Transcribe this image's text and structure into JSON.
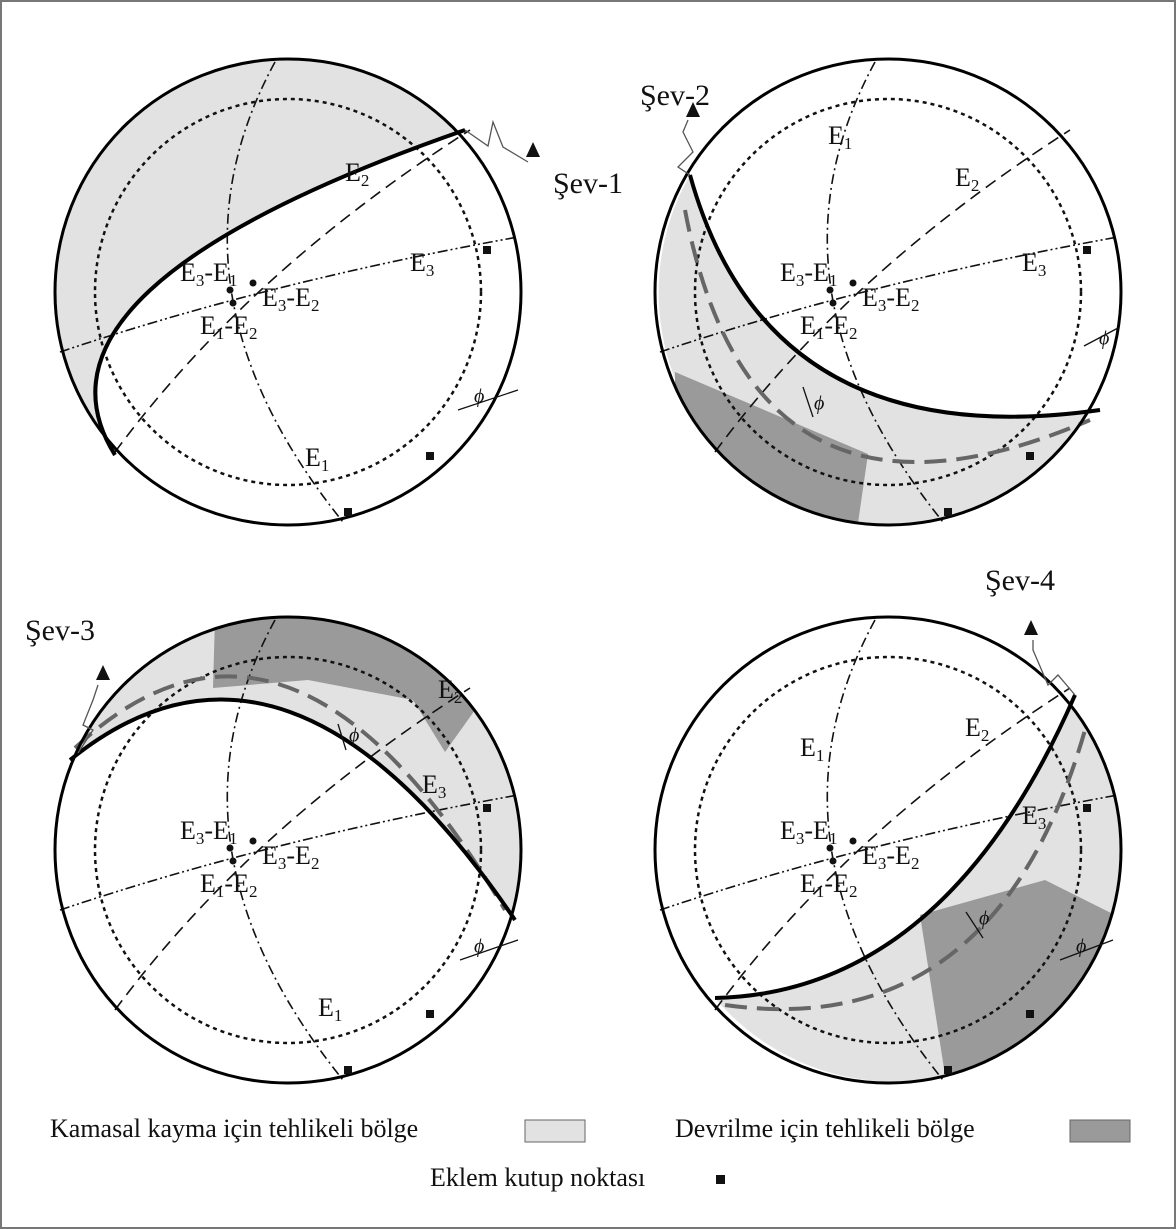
{
  "panels": [
    {
      "slope_label": "Şev-1",
      "joints": [
        [
          "E",
          "1"
        ],
        [
          "E",
          "2"
        ],
        [
          "E",
          "3"
        ]
      ],
      "intersections": [
        [
          "E",
          "3",
          "-E",
          "1"
        ],
        [
          "E",
          "3",
          "-E",
          "2"
        ],
        [
          "E",
          "1",
          "-E",
          "2"
        ]
      ],
      "phi": [
        "ϕ"
      ]
    },
    {
      "slope_label": "Şev-2",
      "joints": [
        [
          "E",
          "1"
        ],
        [
          "E",
          "2"
        ],
        [
          "E",
          "3"
        ]
      ],
      "intersections": [
        [
          "E",
          "3",
          "-E",
          "1"
        ],
        [
          "E",
          "3",
          "-E",
          "2"
        ],
        [
          "E",
          "1",
          "-E",
          "2"
        ]
      ],
      "phi": [
        "ϕ",
        "ϕ"
      ]
    },
    {
      "slope_label": "Şev-3",
      "joints": [
        [
          "E",
          "1"
        ],
        [
          "E",
          "2"
        ],
        [
          "E",
          "3"
        ]
      ],
      "intersections": [
        [
          "E",
          "3",
          "-E",
          "1"
        ],
        [
          "E",
          "3",
          "-E",
          "2"
        ],
        [
          "E",
          "1",
          "-E",
          "2"
        ]
      ],
      "phi": [
        "ϕ",
        "ϕ"
      ]
    },
    {
      "slope_label": "Şev-4",
      "joints": [
        [
          "E",
          "1"
        ],
        [
          "E",
          "2"
        ],
        [
          "E",
          "3"
        ]
      ],
      "intersections": [
        [
          "E",
          "3",
          "-E",
          "1"
        ],
        [
          "E",
          "3",
          "-E",
          "2"
        ],
        [
          "E",
          "1",
          "-E",
          "2"
        ]
      ],
      "phi": [
        "ϕ",
        "ϕ"
      ]
    }
  ],
  "legend": {
    "wedge": "Kamasal kayma için tehlikeli bölge",
    "toppling": "Devrilme  için tehlikeli bölge",
    "poles": "Eklem kutup noktası"
  }
}
